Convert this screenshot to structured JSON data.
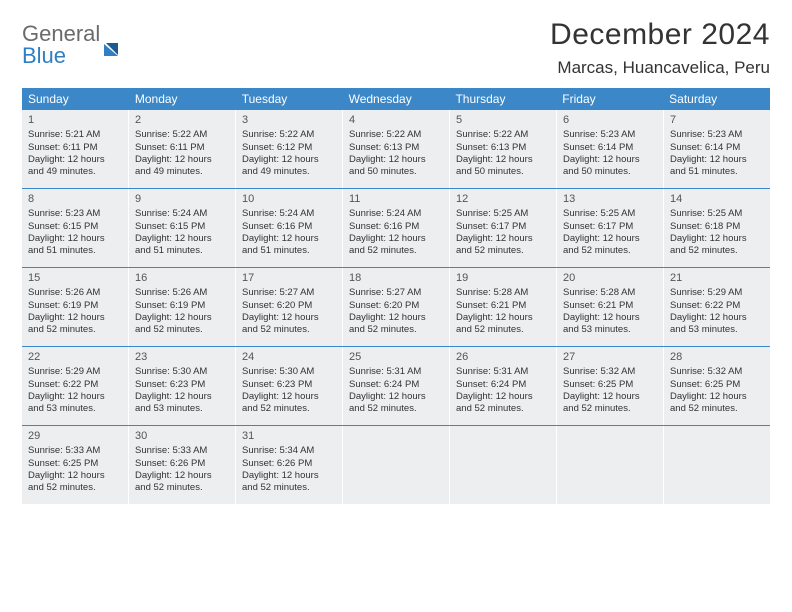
{
  "logo": {
    "general": "General",
    "blue": "Blue"
  },
  "title": "December 2024",
  "location": "Marcas, Huancavelica, Peru",
  "colors": {
    "header_bg": "#3b87c8",
    "header_text": "#ffffff",
    "cell_bg": "#eceef0",
    "row_border": "#3b87c8",
    "text": "#333333",
    "logo_gray": "#6b6b6b",
    "logo_blue": "#2f7fc2"
  },
  "typography": {
    "title_fontsize": 30,
    "location_fontsize": 17,
    "weekday_fontsize": 12,
    "daynum_fontsize": 11,
    "body_fontsize": 9.5
  },
  "weekdays": [
    "Sunday",
    "Monday",
    "Tuesday",
    "Wednesday",
    "Thursday",
    "Friday",
    "Saturday"
  ],
  "days": [
    {
      "num": "1",
      "sunrise": "Sunrise: 5:21 AM",
      "sunset": "Sunset: 6:11 PM",
      "day1": "Daylight: 12 hours",
      "day2": "and 49 minutes."
    },
    {
      "num": "2",
      "sunrise": "Sunrise: 5:22 AM",
      "sunset": "Sunset: 6:11 PM",
      "day1": "Daylight: 12 hours",
      "day2": "and 49 minutes."
    },
    {
      "num": "3",
      "sunrise": "Sunrise: 5:22 AM",
      "sunset": "Sunset: 6:12 PM",
      "day1": "Daylight: 12 hours",
      "day2": "and 49 minutes."
    },
    {
      "num": "4",
      "sunrise": "Sunrise: 5:22 AM",
      "sunset": "Sunset: 6:13 PM",
      "day1": "Daylight: 12 hours",
      "day2": "and 50 minutes."
    },
    {
      "num": "5",
      "sunrise": "Sunrise: 5:22 AM",
      "sunset": "Sunset: 6:13 PM",
      "day1": "Daylight: 12 hours",
      "day2": "and 50 minutes."
    },
    {
      "num": "6",
      "sunrise": "Sunrise: 5:23 AM",
      "sunset": "Sunset: 6:14 PM",
      "day1": "Daylight: 12 hours",
      "day2": "and 50 minutes."
    },
    {
      "num": "7",
      "sunrise": "Sunrise: 5:23 AM",
      "sunset": "Sunset: 6:14 PM",
      "day1": "Daylight: 12 hours",
      "day2": "and 51 minutes."
    },
    {
      "num": "8",
      "sunrise": "Sunrise: 5:23 AM",
      "sunset": "Sunset: 6:15 PM",
      "day1": "Daylight: 12 hours",
      "day2": "and 51 minutes."
    },
    {
      "num": "9",
      "sunrise": "Sunrise: 5:24 AM",
      "sunset": "Sunset: 6:15 PM",
      "day1": "Daylight: 12 hours",
      "day2": "and 51 minutes."
    },
    {
      "num": "10",
      "sunrise": "Sunrise: 5:24 AM",
      "sunset": "Sunset: 6:16 PM",
      "day1": "Daylight: 12 hours",
      "day2": "and 51 minutes."
    },
    {
      "num": "11",
      "sunrise": "Sunrise: 5:24 AM",
      "sunset": "Sunset: 6:16 PM",
      "day1": "Daylight: 12 hours",
      "day2": "and 52 minutes."
    },
    {
      "num": "12",
      "sunrise": "Sunrise: 5:25 AM",
      "sunset": "Sunset: 6:17 PM",
      "day1": "Daylight: 12 hours",
      "day2": "and 52 minutes."
    },
    {
      "num": "13",
      "sunrise": "Sunrise: 5:25 AM",
      "sunset": "Sunset: 6:17 PM",
      "day1": "Daylight: 12 hours",
      "day2": "and 52 minutes."
    },
    {
      "num": "14",
      "sunrise": "Sunrise: 5:25 AM",
      "sunset": "Sunset: 6:18 PM",
      "day1": "Daylight: 12 hours",
      "day2": "and 52 minutes."
    },
    {
      "num": "15",
      "sunrise": "Sunrise: 5:26 AM",
      "sunset": "Sunset: 6:19 PM",
      "day1": "Daylight: 12 hours",
      "day2": "and 52 minutes."
    },
    {
      "num": "16",
      "sunrise": "Sunrise: 5:26 AM",
      "sunset": "Sunset: 6:19 PM",
      "day1": "Daylight: 12 hours",
      "day2": "and 52 minutes."
    },
    {
      "num": "17",
      "sunrise": "Sunrise: 5:27 AM",
      "sunset": "Sunset: 6:20 PM",
      "day1": "Daylight: 12 hours",
      "day2": "and 52 minutes."
    },
    {
      "num": "18",
      "sunrise": "Sunrise: 5:27 AM",
      "sunset": "Sunset: 6:20 PM",
      "day1": "Daylight: 12 hours",
      "day2": "and 52 minutes."
    },
    {
      "num": "19",
      "sunrise": "Sunrise: 5:28 AM",
      "sunset": "Sunset: 6:21 PM",
      "day1": "Daylight: 12 hours",
      "day2": "and 52 minutes."
    },
    {
      "num": "20",
      "sunrise": "Sunrise: 5:28 AM",
      "sunset": "Sunset: 6:21 PM",
      "day1": "Daylight: 12 hours",
      "day2": "and 53 minutes."
    },
    {
      "num": "21",
      "sunrise": "Sunrise: 5:29 AM",
      "sunset": "Sunset: 6:22 PM",
      "day1": "Daylight: 12 hours",
      "day2": "and 53 minutes."
    },
    {
      "num": "22",
      "sunrise": "Sunrise: 5:29 AM",
      "sunset": "Sunset: 6:22 PM",
      "day1": "Daylight: 12 hours",
      "day2": "and 53 minutes."
    },
    {
      "num": "23",
      "sunrise": "Sunrise: 5:30 AM",
      "sunset": "Sunset: 6:23 PM",
      "day1": "Daylight: 12 hours",
      "day2": "and 53 minutes."
    },
    {
      "num": "24",
      "sunrise": "Sunrise: 5:30 AM",
      "sunset": "Sunset: 6:23 PM",
      "day1": "Daylight: 12 hours",
      "day2": "and 52 minutes."
    },
    {
      "num": "25",
      "sunrise": "Sunrise: 5:31 AM",
      "sunset": "Sunset: 6:24 PM",
      "day1": "Daylight: 12 hours",
      "day2": "and 52 minutes."
    },
    {
      "num": "26",
      "sunrise": "Sunrise: 5:31 AM",
      "sunset": "Sunset: 6:24 PM",
      "day1": "Daylight: 12 hours",
      "day2": "and 52 minutes."
    },
    {
      "num": "27",
      "sunrise": "Sunrise: 5:32 AM",
      "sunset": "Sunset: 6:25 PM",
      "day1": "Daylight: 12 hours",
      "day2": "and 52 minutes."
    },
    {
      "num": "28",
      "sunrise": "Sunrise: 5:32 AM",
      "sunset": "Sunset: 6:25 PM",
      "day1": "Daylight: 12 hours",
      "day2": "and 52 minutes."
    },
    {
      "num": "29",
      "sunrise": "Sunrise: 5:33 AM",
      "sunset": "Sunset: 6:25 PM",
      "day1": "Daylight: 12 hours",
      "day2": "and 52 minutes."
    },
    {
      "num": "30",
      "sunrise": "Sunrise: 5:33 AM",
      "sunset": "Sunset: 6:26 PM",
      "day1": "Daylight: 12 hours",
      "day2": "and 52 minutes."
    },
    {
      "num": "31",
      "sunrise": "Sunrise: 5:34 AM",
      "sunset": "Sunset: 6:26 PM",
      "day1": "Daylight: 12 hours",
      "day2": "and 52 minutes."
    }
  ],
  "layout": {
    "start_day_index": 0,
    "rows": 5,
    "cols": 7
  }
}
